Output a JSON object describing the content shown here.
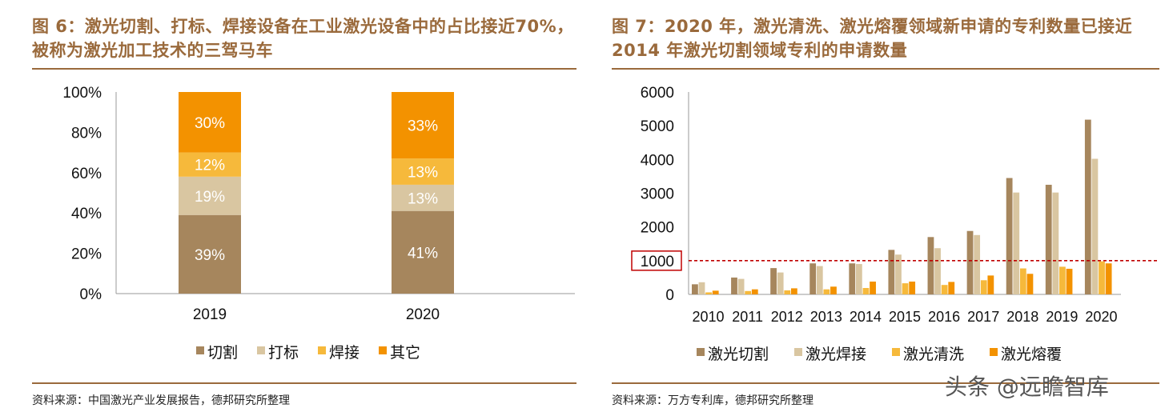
{
  "left": {
    "title": "图 6：激光切割、打标、焊接设备在工业激光设备中的占比接近70%，被称为激光加工技术的三驾马车",
    "source": "资料来源：中国激光产业发展报告，德邦研究所整理"
  },
  "right": {
    "title": "图 7：2020 年，激光清洗、激光熔覆领域新申请的专利数量已接近 2014 年激光切割领域专利的申请数量",
    "source": "资料来源：万方专利库，德邦研究所整理"
  },
  "watermark": "头条 @远瞻智库",
  "chart_data": [
    {
      "type": "bar",
      "stacked": true,
      "categories": [
        "2019",
        "2020"
      ],
      "yticks": [
        "0%",
        "20%",
        "40%",
        "60%",
        "80%",
        "100%"
      ],
      "ylim": [
        0,
        100
      ],
      "legend_position": "bottom",
      "series": [
        {
          "name": "切割",
          "values": [
            39,
            41
          ],
          "labels": [
            "39%",
            "41%"
          ],
          "color": "#a6865d"
        },
        {
          "name": "打标",
          "values": [
            19,
            13
          ],
          "labels": [
            "19%",
            "13%"
          ],
          "color": "#d9c6a1"
        },
        {
          "name": "焊接",
          "values": [
            12,
            13
          ],
          "labels": [
            "12%",
            "13%"
          ],
          "color": "#f6b93b"
        },
        {
          "name": "其它",
          "values": [
            30,
            33
          ],
          "labels": [
            "30%",
            "33%"
          ],
          "color": "#f39200"
        }
      ]
    },
    {
      "type": "bar",
      "categories": [
        "2010",
        "2011",
        "2012",
        "2013",
        "2014",
        "2015",
        "2016",
        "2017",
        "2018",
        "2019",
        "2020"
      ],
      "yticks": [
        "0",
        "1000",
        "2000",
        "3000",
        "4000",
        "5000",
        "6000"
      ],
      "ylim": [
        0,
        6000
      ],
      "reference_line": {
        "value": 1000,
        "label": "1000",
        "color": "#c00000"
      },
      "legend_position": "bottom",
      "series": [
        {
          "name": "激光切割",
          "color": "#a6865d",
          "values": [
            300,
            500,
            780,
            920,
            920,
            1320,
            1700,
            1880,
            3450,
            3250,
            5180
          ]
        },
        {
          "name": "激光焊接",
          "color": "#d9c6a1",
          "values": [
            360,
            460,
            650,
            840,
            900,
            1180,
            1370,
            1760,
            3020,
            3020,
            4020
          ]
        },
        {
          "name": "激光清洗",
          "color": "#f6b93b",
          "values": [
            60,
            100,
            120,
            150,
            190,
            330,
            280,
            420,
            770,
            820,
            980
          ]
        },
        {
          "name": "激光熔覆",
          "color": "#f39200",
          "values": [
            110,
            150,
            180,
            230,
            380,
            380,
            370,
            560,
            610,
            760,
            920
          ]
        }
      ]
    }
  ]
}
